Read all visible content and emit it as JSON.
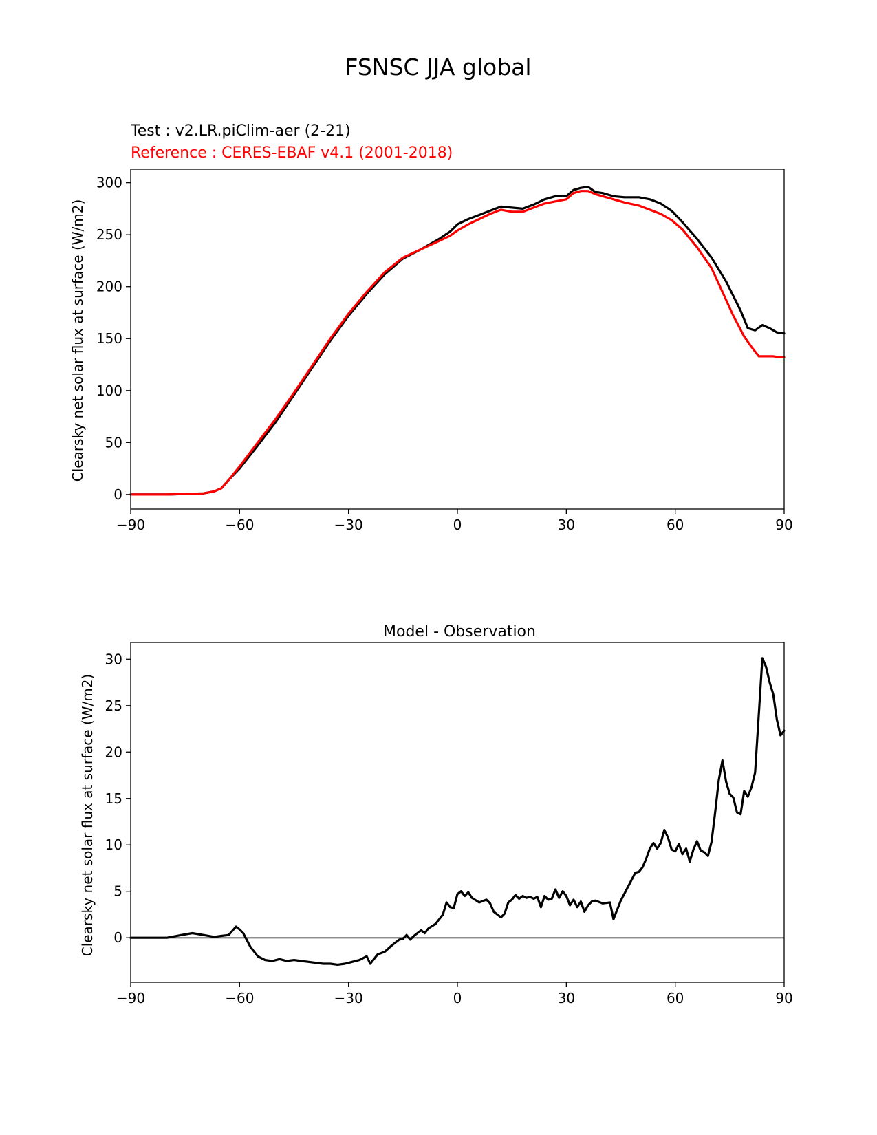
{
  "figure_title": "FSNSC JJA global",
  "colors": {
    "test": "#000000",
    "reference": "#ff0000",
    "zero_line": "#808080"
  },
  "chart_data": [
    {
      "type": "line",
      "title_test": "Test : v2.LR.piClim-aer (2-21)",
      "title_reference": "Reference : CERES-EBAF v4.1 (2001-2018)",
      "xlabel": "",
      "ylabel": "Clearsky net solar flux at surface (W/m2)",
      "xlim": [
        -90,
        90
      ],
      "ylim": [
        -14,
        313
      ],
      "xticks": [
        -90,
        -60,
        -30,
        0,
        30,
        60,
        90
      ],
      "xtick_labels": [
        "−90",
        "−60",
        "−30",
        "0",
        "30",
        "60",
        "90"
      ],
      "yticks": [
        0,
        50,
        100,
        150,
        200,
        250,
        300
      ],
      "ytick_labels": [
        "0",
        "50",
        "100",
        "150",
        "200",
        "250",
        "300"
      ],
      "grid": false,
      "series": [
        {
          "name": "Test : v2.LR.piClim-aer (2-21)",
          "color": "#000000",
          "x": [
            -90,
            -80,
            -75,
            -70,
            -67,
            -65,
            -63,
            -60,
            -55,
            -50,
            -45,
            -40,
            -35,
            -30,
            -25,
            -20,
            -15,
            -10,
            -5,
            -2,
            0,
            3,
            6,
            9,
            12,
            15,
            18,
            21,
            24,
            27,
            30,
            32,
            34,
            36,
            38,
            40,
            43,
            46,
            50,
            53,
            56,
            59,
            62,
            66,
            70,
            74,
            78,
            80,
            82,
            84,
            86,
            88,
            90
          ],
          "y": [
            0,
            0,
            0.5,
            1,
            3,
            6,
            14,
            25,
            47,
            70,
            96,
            122,
            148,
            172,
            193,
            212,
            227,
            236,
            246,
            253,
            260,
            265,
            269,
            273,
            277,
            276,
            275,
            279,
            284,
            287,
            287,
            293,
            295,
            296,
            291,
            290,
            287,
            286,
            286,
            284,
            280,
            273,
            262,
            246,
            228,
            205,
            177,
            160,
            158,
            163,
            160,
            156,
            155
          ]
        },
        {
          "name": "Reference : CERES-EBAF v4.1 (2001-2018)",
          "color": "#ff0000",
          "x": [
            -90,
            -80,
            -75,
            -70,
            -67,
            -65,
            -63,
            -60,
            -55,
            -50,
            -45,
            -40,
            -35,
            -30,
            -25,
            -20,
            -15,
            -10,
            -5,
            -2,
            0,
            3,
            6,
            9,
            12,
            15,
            18,
            21,
            24,
            27,
            30,
            32,
            34,
            36,
            38,
            40,
            43,
            46,
            50,
            53,
            56,
            59,
            62,
            66,
            70,
            73,
            76,
            79,
            81,
            83,
            85,
            87,
            89,
            90
          ],
          "y": [
            0,
            0,
            0.5,
            1,
            3,
            6,
            14,
            27,
            50,
            73,
            98,
            124,
            150,
            174,
            195,
            214,
            228,
            236,
            244,
            249,
            254,
            260,
            265,
            270,
            274,
            272,
            272,
            276,
            280,
            282,
            284,
            290,
            292,
            292,
            289,
            287,
            284,
            281,
            278,
            274,
            270,
            264,
            255,
            238,
            218,
            195,
            172,
            152,
            142,
            133,
            133,
            133,
            132,
            132
          ]
        }
      ]
    },
    {
      "type": "line",
      "title": "Model - Observation",
      "xlabel": "",
      "ylabel": "Clearsky net solar flux at surface (W/m2)",
      "xlim": [
        -90,
        90
      ],
      "ylim": [
        -4.8,
        31.8
      ],
      "xticks": [
        -90,
        -60,
        -30,
        0,
        30,
        60,
        90
      ],
      "xtick_labels": [
        "−90",
        "−60",
        "−30",
        "0",
        "30",
        "60",
        "90"
      ],
      "yticks": [
        0,
        5,
        10,
        15,
        20,
        25,
        30
      ],
      "ytick_labels": [
        "0",
        "5",
        "10",
        "15",
        "20",
        "25",
        "30"
      ],
      "grid": false,
      "zero_line": 0,
      "series": [
        {
          "color": "#000000",
          "x": [
            -90,
            -80,
            -76,
            -73,
            -70,
            -67,
            -65,
            -63,
            -61,
            -60,
            -59,
            -57,
            -55,
            -53,
            -51,
            -49,
            -47,
            -45,
            -43,
            -41,
            -39,
            -37,
            -35,
            -33,
            -31,
            -29,
            -27,
            -25,
            -24,
            -22,
            -20,
            -18,
            -16,
            -15,
            -14,
            -13,
            -12,
            -10,
            -9,
            -8,
            -6,
            -4,
            -3,
            -2,
            -1,
            0,
            1,
            2,
            3,
            4,
            6,
            8,
            9,
            10,
            11,
            12,
            13,
            14,
            15,
            16,
            17,
            18,
            19,
            20,
            21,
            22,
            23,
            24,
            25,
            26,
            27,
            28,
            29,
            30,
            31,
            32,
            33,
            34,
            35,
            36,
            37,
            38,
            40,
            42,
            43,
            45,
            47,
            49,
            50,
            51,
            52,
            53,
            54,
            55,
            56,
            57,
            58,
            59,
            60,
            61,
            62,
            63,
            64,
            65,
            66,
            67,
            68,
            69,
            70,
            71,
            72,
            73,
            74,
            75,
            76,
            77,
            78,
            79,
            80,
            81,
            82,
            83,
            84,
            85,
            86,
            87,
            88,
            89,
            90
          ],
          "y": [
            0,
            0,
            0.3,
            0.5,
            0.3,
            0.1,
            0.2,
            0.3,
            1.2,
            0.9,
            0.5,
            -1,
            -2,
            -2.4,
            -2.5,
            -2.3,
            -2.5,
            -2.4,
            -2.5,
            -2.6,
            -2.7,
            -2.8,
            -2.8,
            -2.9,
            -2.8,
            -2.6,
            -2.4,
            -2,
            -2.8,
            -1.8,
            -1.5,
            -0.8,
            -0.2,
            -0.1,
            0.3,
            -0.2,
            0.2,
            0.8,
            0.5,
            1,
            1.5,
            2.5,
            3.8,
            3.3,
            3.2,
            4.7,
            5,
            4.5,
            4.9,
            4.3,
            3.8,
            4.1,
            3.7,
            2.8,
            2.5,
            2.2,
            2.6,
            3.8,
            4.1,
            4.6,
            4.2,
            4.5,
            4.3,
            4.4,
            4.2,
            4.4,
            3.3,
            4.5,
            4.1,
            4.2,
            5.2,
            4.3,
            5,
            4.5,
            3.5,
            4.1,
            3.3,
            3.9,
            2.8,
            3.5,
            3.9,
            4,
            3.7,
            3.8,
            2,
            4,
            5.5,
            7,
            7.1,
            7.6,
            8.5,
            9.6,
            10.2,
            9.6,
            10.2,
            11.6,
            10.8,
            9.5,
            9.3,
            10.1,
            9,
            9.6,
            8.2,
            9.5,
            10.4,
            9.4,
            9.2,
            8.8,
            10.3,
            13.5,
            17,
            19.1,
            16.8,
            15.5,
            15.1,
            13.5,
            13.3,
            15.8,
            15.2,
            16.2,
            17.8,
            24,
            30.1,
            29.2,
            27.5,
            26.2,
            23.5,
            21.8,
            22.3
          ]
        }
      ]
    }
  ]
}
